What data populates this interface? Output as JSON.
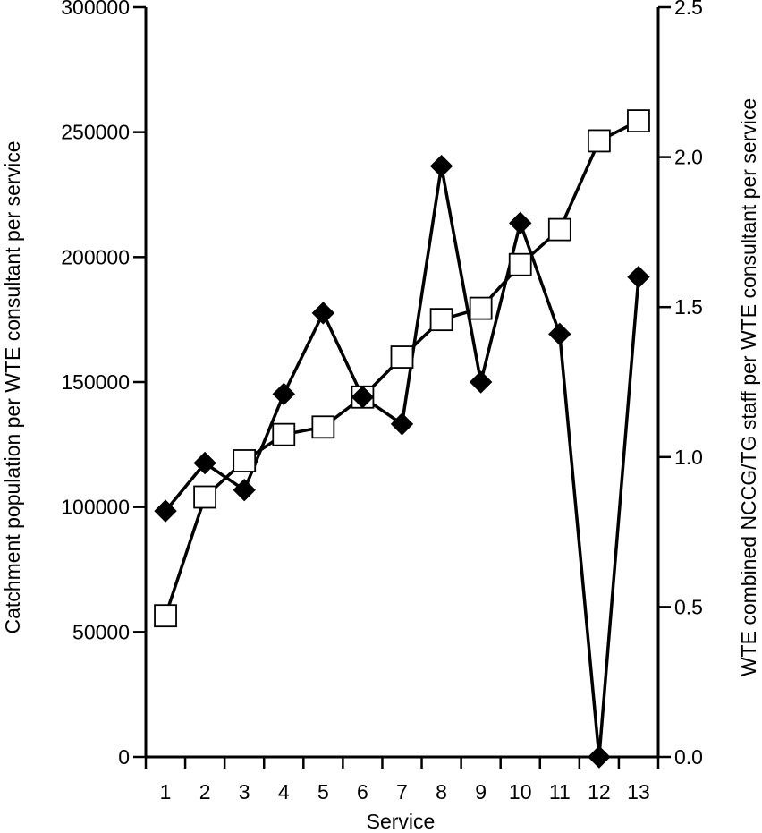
{
  "chart_data": {
    "type": "line",
    "xlabel": "Service",
    "ylabel_left": "Catchment population per WTE consultant per service",
    "ylabel_right": "WTE combined NCCG/TG staff per WTE consultant per service",
    "x": [
      1,
      2,
      3,
      4,
      5,
      6,
      7,
      8,
      9,
      10,
      11,
      12,
      13
    ],
    "x_tick_labels": [
      "1",
      "2",
      "3",
      "4",
      "5",
      "6",
      "7",
      "8",
      "9",
      "10",
      "11",
      "12",
      "13"
    ],
    "ylim_left": [
      0,
      300000
    ],
    "ylim_right": [
      0,
      2.5
    ],
    "yticks_left": [
      "0",
      "50000",
      "100000",
      "150000",
      "200000",
      "250000",
      "300000"
    ],
    "yticks_right": [
      "0.0",
      "0.5",
      "1.0",
      "1.5",
      "2.0",
      "2.5"
    ],
    "grid": false,
    "series": [
      {
        "axis": "left",
        "marker": "open-square",
        "color": "#000000",
        "values": [
          56500,
          104000,
          118500,
          129000,
          132000,
          144000,
          160000,
          175000,
          179500,
          197000,
          211000,
          246500,
          254500
        ]
      },
      {
        "axis": "right",
        "marker": "filled-diamond",
        "color": "#000000",
        "values": [
          0.82,
          0.98,
          0.89,
          1.21,
          1.48,
          1.2,
          1.11,
          1.97,
          1.25,
          1.78,
          1.41,
          0.0,
          1.6
        ]
      }
    ]
  }
}
